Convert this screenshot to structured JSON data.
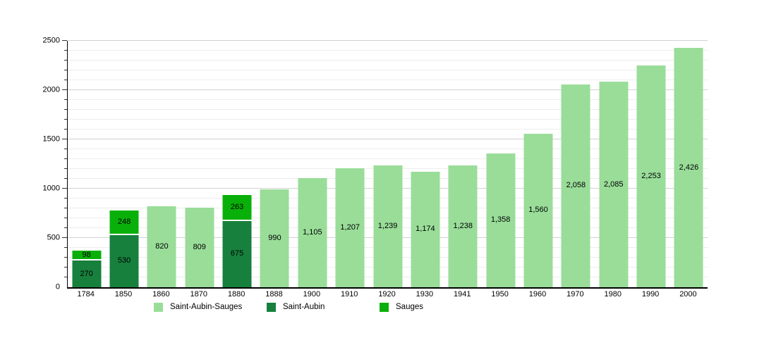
{
  "chart_data": {
    "type": "bar",
    "stacked": true,
    "title": "",
    "categories": [
      "1784",
      "1850",
      "1860",
      "1870",
      "1880",
      "1888",
      "1900",
      "1910",
      "1920",
      "1930",
      "1941",
      "1950",
      "1960",
      "1970",
      "1980",
      "1990",
      "2000"
    ],
    "series_colors": {
      "Saint-Aubin-Sauges": "#99dd99",
      "Saint-Aubin": "#17803d",
      "Sauges": "#0ab00a"
    },
    "bars": [
      {
        "year": "1784",
        "segments": [
          {
            "series": "Saint-Aubin",
            "value": 270
          },
          {
            "series": "Sauges",
            "value": 98
          }
        ]
      },
      {
        "year": "1850",
        "segments": [
          {
            "series": "Saint-Aubin",
            "value": 530
          },
          {
            "series": "Sauges",
            "value": 248
          }
        ]
      },
      {
        "year": "1860",
        "segments": [
          {
            "series": "Saint-Aubin-Sauges",
            "value": 820
          }
        ]
      },
      {
        "year": "1870",
        "segments": [
          {
            "series": "Saint-Aubin-Sauges",
            "value": 809
          }
        ]
      },
      {
        "year": "1880",
        "segments": [
          {
            "series": "Saint-Aubin",
            "value": 675
          },
          {
            "series": "Sauges",
            "value": 263
          }
        ]
      },
      {
        "year": "1888",
        "segments": [
          {
            "series": "Saint-Aubin-Sauges",
            "value": 990
          }
        ]
      },
      {
        "year": "1900",
        "segments": [
          {
            "series": "Saint-Aubin-Sauges",
            "value": 1105
          }
        ]
      },
      {
        "year": "1910",
        "segments": [
          {
            "series": "Saint-Aubin-Sauges",
            "value": 1207
          }
        ]
      },
      {
        "year": "1920",
        "segments": [
          {
            "series": "Saint-Aubin-Sauges",
            "value": 1239
          }
        ]
      },
      {
        "year": "1930",
        "segments": [
          {
            "series": "Saint-Aubin-Sauges",
            "value": 1174
          }
        ]
      },
      {
        "year": "1941",
        "segments": [
          {
            "series": "Saint-Aubin-Sauges",
            "value": 1238
          }
        ]
      },
      {
        "year": "1950",
        "segments": [
          {
            "series": "Saint-Aubin-Sauges",
            "value": 1358
          }
        ]
      },
      {
        "year": "1960",
        "segments": [
          {
            "series": "Saint-Aubin-Sauges",
            "value": 1560
          }
        ]
      },
      {
        "year": "1970",
        "segments": [
          {
            "series": "Saint-Aubin-Sauges",
            "value": 2058
          }
        ]
      },
      {
        "year": "1980",
        "segments": [
          {
            "series": "Saint-Aubin-Sauges",
            "value": 2085
          }
        ]
      },
      {
        "year": "1990",
        "segments": [
          {
            "series": "Saint-Aubin-Sauges",
            "value": 2253
          }
        ]
      },
      {
        "year": "2000",
        "segments": [
          {
            "series": "Saint-Aubin-Sauges",
            "value": 2426
          }
        ]
      }
    ],
    "legend": [
      {
        "label": "Saint-Aubin-Sauges",
        "color": "#99dd99"
      },
      {
        "label": "Saint-Aubin",
        "color": "#17803d"
      },
      {
        "label": "Sauges",
        "color": "#0ab00a"
      }
    ],
    "y_axis": {
      "ticks": [
        0,
        500,
        1000,
        1500,
        2000,
        2500
      ],
      "minor_step": 100,
      "ylim": [
        0,
        2500
      ]
    },
    "x_axis": {
      "label": ""
    },
    "grid": "on",
    "legend_position": "bottom"
  }
}
